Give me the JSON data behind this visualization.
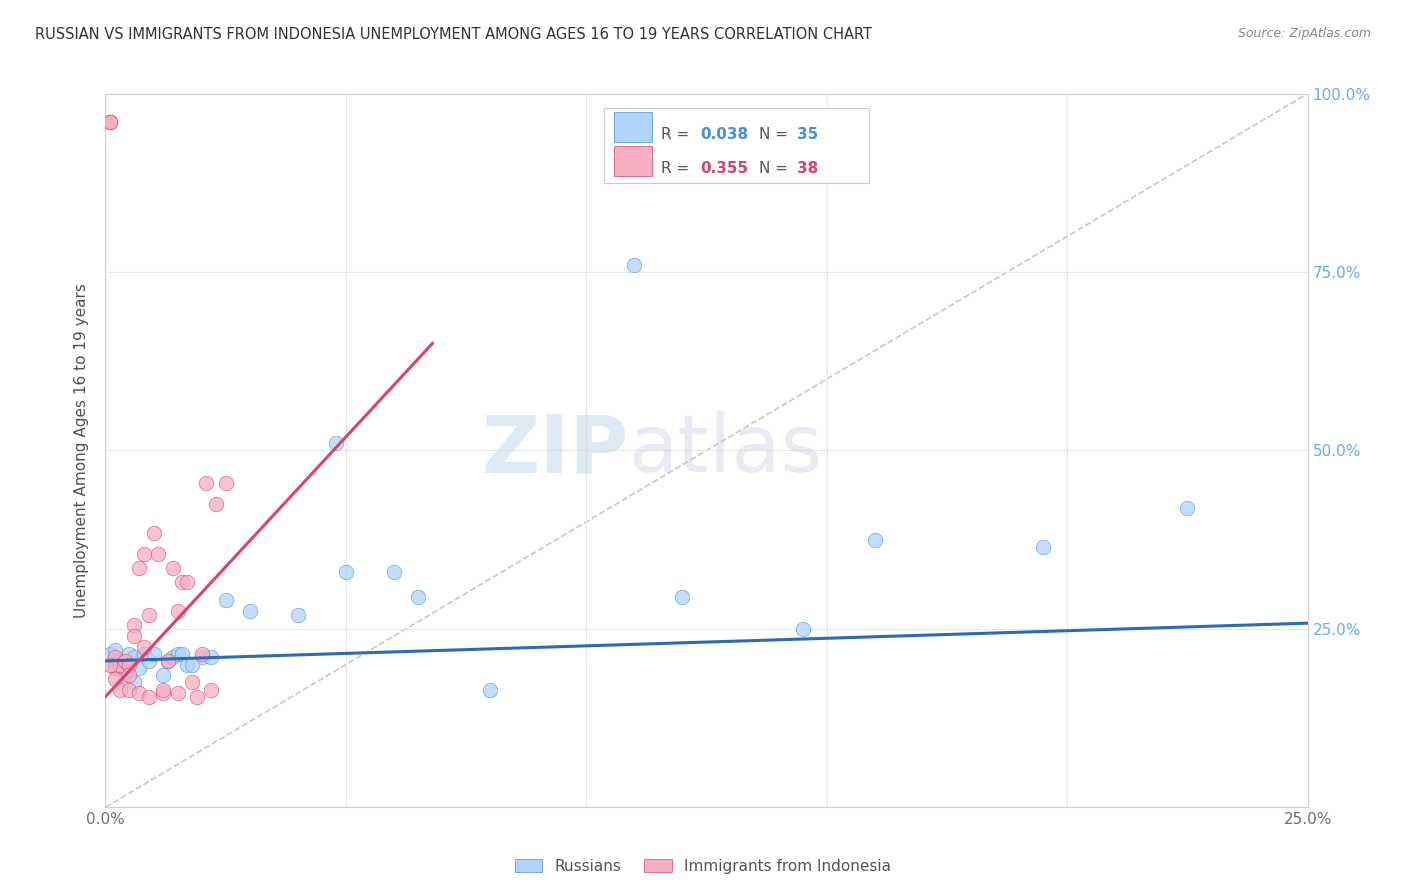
{
  "title": "RUSSIAN VS IMMIGRANTS FROM INDONESIA UNEMPLOYMENT AMONG AGES 16 TO 19 YEARS CORRELATION CHART",
  "source": "Source: ZipAtlas.com",
  "ylabel": "Unemployment Among Ages 16 to 19 years",
  "watermark_zip": "ZIP",
  "watermark_atlas": "atlas",
  "xlim": [
    0.0,
    0.25
  ],
  "ylim": [
    0.0,
    1.0
  ],
  "xticks": [
    0.0,
    0.05,
    0.1,
    0.15,
    0.2,
    0.25
  ],
  "yticks": [
    0.0,
    0.25,
    0.5,
    0.75,
    1.0
  ],
  "xticklabels": [
    "0.0%",
    "",
    "",
    "",
    "",
    "25.0%"
  ],
  "yticklabels_right": [
    "",
    "25.0%",
    "50.0%",
    "75.0%",
    "100.0%"
  ],
  "legend_entries": [
    {
      "label": "Russians",
      "color": "#aed4f7",
      "edge_color": "#4a90d9",
      "R": "0.038",
      "N": "35",
      "R_color": "#4a90d9",
      "N_color": "#4a90d9"
    },
    {
      "label": "Immigrants from Indonesia",
      "color": "#f7aec0",
      "edge_color": "#d9456a",
      "R": "0.355",
      "N": "38",
      "R_color": "#d9456a",
      "N_color": "#d9456a"
    }
  ],
  "blue_line_color": "#2a6db5",
  "pink_line_color": "#d9456a",
  "ref_line_color": "#c8c8c8",
  "title_color": "#333333",
  "source_color": "#888888",
  "axis_color": "#d0d0d0",
  "grid_color": "#e8e8e8",
  "right_yaxis_color": "#6aabf0",
  "blue_line_x": [
    0.0,
    0.25
  ],
  "blue_line_y": [
    0.205,
    0.258
  ],
  "pink_line_x": [
    0.0,
    0.068
  ],
  "pink_line_y": [
    0.155,
    0.65
  ],
  "russians_x": [
    0.001,
    0.002,
    0.003,
    0.005,
    0.006,
    0.007,
    0.008,
    0.009,
    0.01,
    0.012,
    0.013,
    0.014,
    0.015,
    0.016,
    0.017,
    0.02,
    0.022,
    0.03,
    0.04,
    0.048,
    0.05,
    0.06,
    0.065,
    0.08,
    0.11,
    0.12,
    0.145,
    0.16,
    0.195,
    0.225,
    0.002,
    0.004,
    0.006,
    0.018,
    0.025
  ],
  "russians_y": [
    0.215,
    0.22,
    0.205,
    0.215,
    0.21,
    0.195,
    0.215,
    0.205,
    0.215,
    0.185,
    0.205,
    0.21,
    0.215,
    0.215,
    0.2,
    0.21,
    0.21,
    0.275,
    0.27,
    0.51,
    0.33,
    0.33,
    0.295,
    0.165,
    0.76,
    0.295,
    0.25,
    0.375,
    0.365,
    0.42,
    0.2,
    0.185,
    0.175,
    0.2,
    0.29
  ],
  "indonesia_x": [
    0.001,
    0.001,
    0.001,
    0.002,
    0.002,
    0.003,
    0.004,
    0.005,
    0.005,
    0.006,
    0.006,
    0.007,
    0.008,
    0.008,
    0.009,
    0.01,
    0.011,
    0.012,
    0.013,
    0.014,
    0.015,
    0.016,
    0.017,
    0.018,
    0.019,
    0.02,
    0.021,
    0.022,
    0.023,
    0.025,
    0.001,
    0.002,
    0.003,
    0.005,
    0.007,
    0.009,
    0.012,
    0.015
  ],
  "indonesia_y": [
    0.96,
    0.96,
    0.96,
    0.21,
    0.195,
    0.2,
    0.205,
    0.2,
    0.185,
    0.255,
    0.24,
    0.335,
    0.355,
    0.225,
    0.27,
    0.385,
    0.355,
    0.16,
    0.205,
    0.335,
    0.275,
    0.315,
    0.315,
    0.175,
    0.155,
    0.215,
    0.455,
    0.165,
    0.425,
    0.455,
    0.2,
    0.18,
    0.165,
    0.165,
    0.16,
    0.155,
    0.165,
    0.16
  ]
}
